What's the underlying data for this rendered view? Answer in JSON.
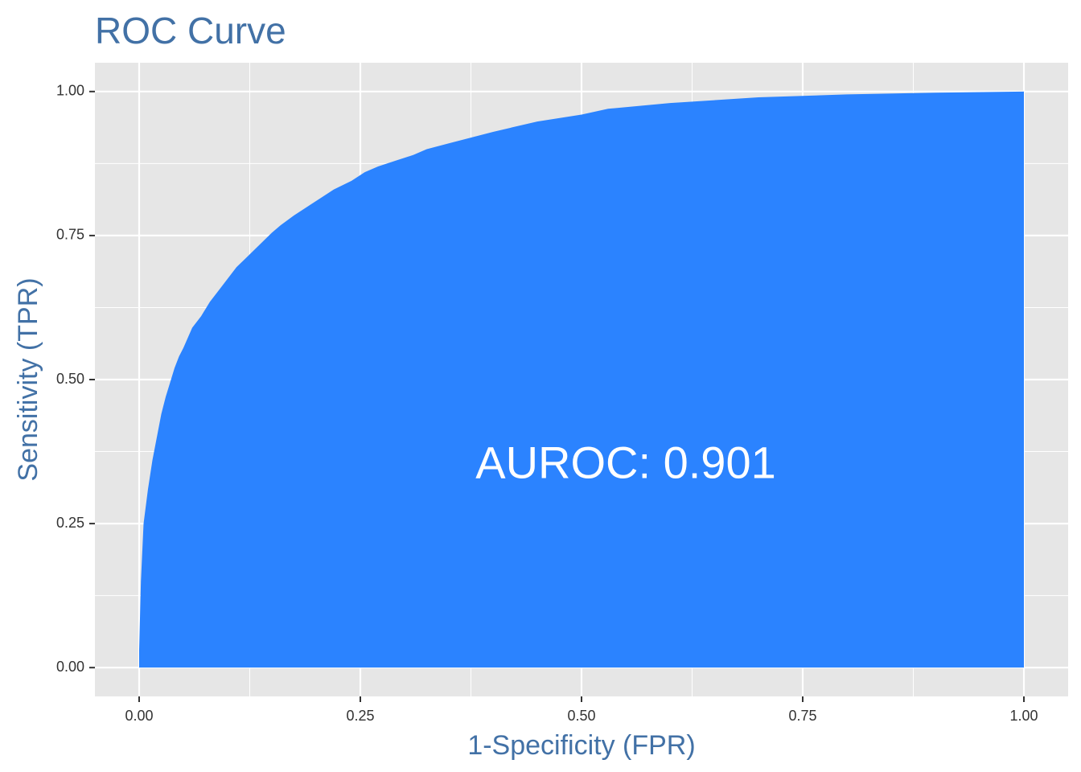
{
  "chart_data": {
    "type": "area",
    "title": "ROC Curve",
    "xlabel": "1-Specificity (FPR)",
    "ylabel": "Sensitivity (TPR)",
    "xlim": [
      -0.05,
      1.05
    ],
    "ylim": [
      -0.05,
      1.05
    ],
    "x_ticks": [
      0,
      0.25,
      0.5,
      0.75,
      1
    ],
    "y_ticks": [
      0,
      0.25,
      0.5,
      0.75,
      1
    ],
    "x_tick_labels": [
      "0.00",
      "0.25",
      "0.50",
      "0.75",
      "1.00"
    ],
    "y_tick_labels": [
      "0.00",
      "0.25",
      "0.50",
      "0.75",
      "1.00"
    ],
    "grid": true,
    "legend": "none",
    "series": [
      {
        "x": [
          0,
          0,
          0.002,
          0.005,
          0.01,
          0.015,
          0.02,
          0.025,
          0.03,
          0.035,
          0.04,
          0.045,
          0.05,
          0.06,
          0.07,
          0.08,
          0.09,
          0.1,
          0.11,
          0.12,
          0.13,
          0.14,
          0.15,
          0.16,
          0.175,
          0.19,
          0.205,
          0.22,
          0.24,
          0.255,
          0.27,
          0.29,
          0.31,
          0.325,
          0.35,
          0.375,
          0.4,
          0.45,
          0.5,
          0.53,
          0.6,
          0.65,
          0.7,
          0.8,
          0.9,
          1
        ],
        "y": [
          0,
          0.03,
          0.15,
          0.25,
          0.31,
          0.36,
          0.4,
          0.44,
          0.47,
          0.495,
          0.52,
          0.54,
          0.555,
          0.59,
          0.61,
          0.635,
          0.655,
          0.675,
          0.695,
          0.71,
          0.725,
          0.74,
          0.755,
          0.768,
          0.785,
          0.8,
          0.815,
          0.83,
          0.845,
          0.86,
          0.87,
          0.88,
          0.89,
          0.9,
          0.91,
          0.92,
          0.93,
          0.948,
          0.96,
          0.97,
          0.98,
          0.985,
          0.99,
          0.995,
          0.998,
          1
        ]
      }
    ],
    "annotation": {
      "text": "AUROC: 0.901",
      "x": 0.55,
      "y": 0.35
    },
    "colors": {
      "fill": "#2b83ff",
      "panel": "#e6e6e6",
      "grid": "#ffffff",
      "title": "#4271a6",
      "tick_text": "#333333"
    }
  }
}
